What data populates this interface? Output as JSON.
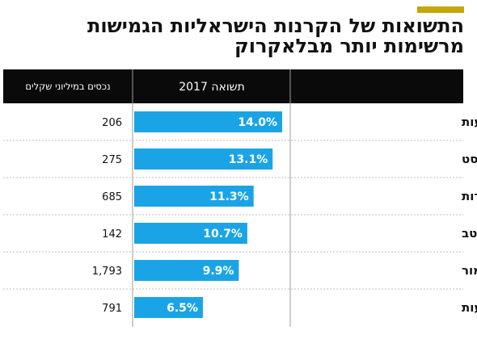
{
  "title_line1": "התשואות של הקרנות הישראליות הגמישות",
  "title_line2": "מרשימות יותר מבלאקרוק",
  "colors": {
    "accent": "#c4a80a",
    "bar": "#1aa4e5",
    "header": "#0a0a0a"
  },
  "chart_data": {
    "type": "table",
    "columns": [
      "",
      "תשואה 2017",
      "נכסים במיליוני שקלים"
    ],
    "rows": [
      {
        "fund": "קסם אקסלנס תיק השקעות",
        "return": 14.0,
        "return_label": "14.0%",
        "assets": "206"
      },
      {
        "fund": "אנליסט",
        "return": 13.1,
        "return_label": "13.1%",
        "assets": "275"
      },
      {
        "fund": "ילין לפידות",
        "return": 11.3,
        "return_label": "11.3%",
        "assets": "685"
      },
      {
        "fund": "מיטב",
        "return": 10.7,
        "return_label": "10.7%",
        "assets": "142"
      },
      {
        "fund": "מור",
        "return": 9.9,
        "return_label": "9.9%",
        "assets": "1,793"
      },
      {
        "fund": "פסגות תיק השקעות",
        "return": 6.5,
        "return_label": "6.5%",
        "assets": "791"
      }
    ],
    "bar_max": 14.0
  }
}
